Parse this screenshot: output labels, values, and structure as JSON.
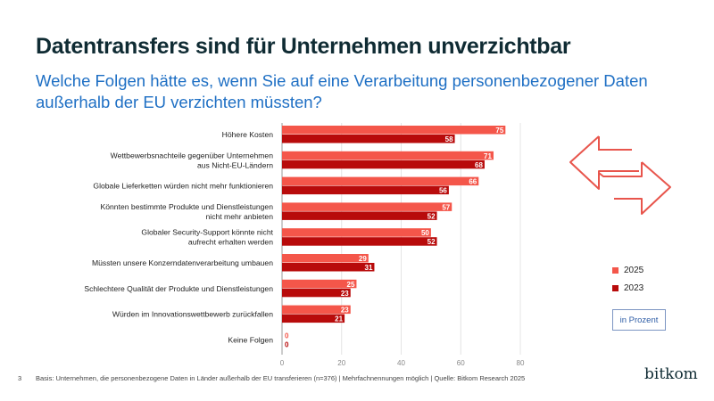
{
  "title": "Datentransfers sind für Unternehmen unverzichtbar",
  "subtitle": "Welche Folgen hätte es, wenn Sie auf eine Verarbeitung personenbezogener Daten außerhalb der EU verzichten müssten?",
  "unit_label": "in Prozent",
  "footer": "Basis: Unternehmen, die personenbezogene Daten in Länder außerhalb der EU transferieren (n=376) | Mehrfachnennungen möglich | Quelle: Bitkom Research 2025",
  "page_number": "3",
  "logo": "bitkom",
  "colors": {
    "2025": "#f4564a",
    "2023": "#b80b0b"
  },
  "chart_data": {
    "type": "bar",
    "orientation": "horizontal",
    "categories": [
      [
        "Höhere Kosten"
      ],
      [
        "Wettbewerbsnachteile gegenüber Unternehmen",
        "aus Nicht-EU-Ländern"
      ],
      [
        "Globale Lieferketten würden nicht mehr funktionieren"
      ],
      [
        "Könnten bestimmte Produkte und Dienstleistungen",
        "nicht mehr anbieten"
      ],
      [
        "Globaler Security-Support könnte nicht",
        "aufrecht erhalten werden"
      ],
      [
        "Müssten unsere Konzerndatenverarbeitung umbauen"
      ],
      [
        "Schlechtere Qualität der Produkte und Dienstleistungen"
      ],
      [
        "Würden im Innovationswettbewerb zurückfallen"
      ],
      [
        "Keine Folgen"
      ]
    ],
    "series": [
      {
        "name": "2025",
        "values": [
          75,
          71,
          66,
          57,
          50,
          29,
          25,
          23,
          0
        ]
      },
      {
        "name": "2023",
        "values": [
          58,
          68,
          56,
          52,
          52,
          31,
          23,
          21,
          0
        ]
      }
    ],
    "xlim": [
      0,
      80
    ],
    "xticks": [
      "0",
      "20",
      "40",
      "60",
      "80"
    ],
    "grid": true,
    "legend_position": "right"
  }
}
